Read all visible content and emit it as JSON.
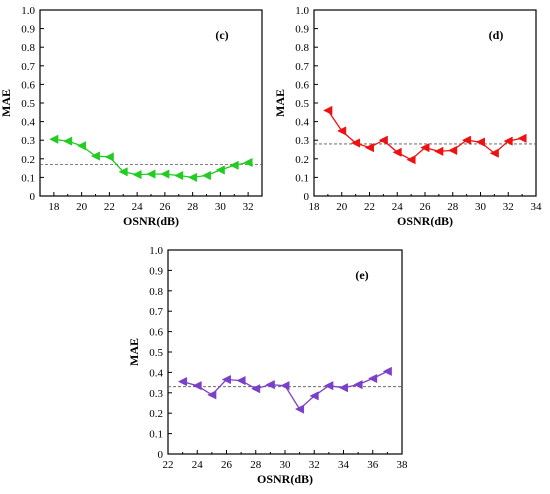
{
  "chart_data": [
    {
      "panel": "(c)",
      "type": "line",
      "x": [
        18,
        19,
        20,
        21,
        22,
        23,
        24,
        25,
        26,
        27,
        28,
        29,
        30,
        31,
        32
      ],
      "series": [
        {
          "values": [
            0.305,
            0.295,
            0.27,
            0.215,
            0.21,
            0.13,
            0.115,
            0.118,
            0.118,
            0.11,
            0.1,
            0.11,
            0.14,
            0.165,
            0.18
          ],
          "color": "#22cc22"
        }
      ],
      "reference_line": 0.17,
      "xlabel": "OSNR(dB)",
      "ylabel": "MAE",
      "xlim": [
        17,
        33
      ],
      "ylim": [
        0,
        1.0
      ],
      "xticks": [
        18,
        20,
        22,
        24,
        26,
        28,
        30,
        32
      ],
      "yticks": [
        0,
        0.1,
        0.2,
        0.3,
        0.4,
        0.5,
        0.6,
        0.7,
        0.8,
        0.9,
        1.0
      ],
      "grid": false
    },
    {
      "panel": "(d)",
      "type": "line",
      "x": [
        19,
        20,
        21,
        22,
        23,
        24,
        25,
        26,
        27,
        28,
        29,
        30,
        31,
        32,
        33
      ],
      "series": [
        {
          "values": [
            0.46,
            0.35,
            0.285,
            0.26,
            0.3,
            0.235,
            0.195,
            0.26,
            0.24,
            0.245,
            0.3,
            0.29,
            0.23,
            0.295,
            0.31
          ],
          "color": "#ee1111"
        }
      ],
      "reference_line": 0.28,
      "xlabel": "OSNR(dB)",
      "ylabel": "MAE",
      "xlim": [
        18,
        34
      ],
      "ylim": [
        0,
        1.0
      ],
      "xticks": [
        18,
        20,
        22,
        24,
        26,
        28,
        30,
        32,
        34
      ],
      "yticks": [
        0,
        0.1,
        0.2,
        0.3,
        0.4,
        0.5,
        0.6,
        0.7,
        0.8,
        0.9,
        1.0
      ],
      "grid": false
    },
    {
      "panel": "(e)",
      "type": "line",
      "x": [
        23,
        24,
        25,
        26,
        27,
        28,
        29,
        30,
        31,
        32,
        33,
        34,
        35,
        36,
        37
      ],
      "series": [
        {
          "values": [
            0.355,
            0.335,
            0.29,
            0.365,
            0.36,
            0.32,
            0.34,
            0.335,
            0.22,
            0.285,
            0.335,
            0.325,
            0.34,
            0.37,
            0.405
          ],
          "color": "#7b3fc8"
        }
      ],
      "reference_line": 0.33,
      "xlabel": "OSNR(dB)",
      "ylabel": "MAE",
      "xlim": [
        22,
        38
      ],
      "ylim": [
        0,
        1.0
      ],
      "xticks": [
        22,
        24,
        26,
        28,
        30,
        32,
        34,
        36,
        38
      ],
      "yticks": [
        0,
        0.1,
        0.2,
        0.3,
        0.4,
        0.5,
        0.6,
        0.7,
        0.8,
        0.9,
        1.0
      ],
      "grid": false
    }
  ]
}
